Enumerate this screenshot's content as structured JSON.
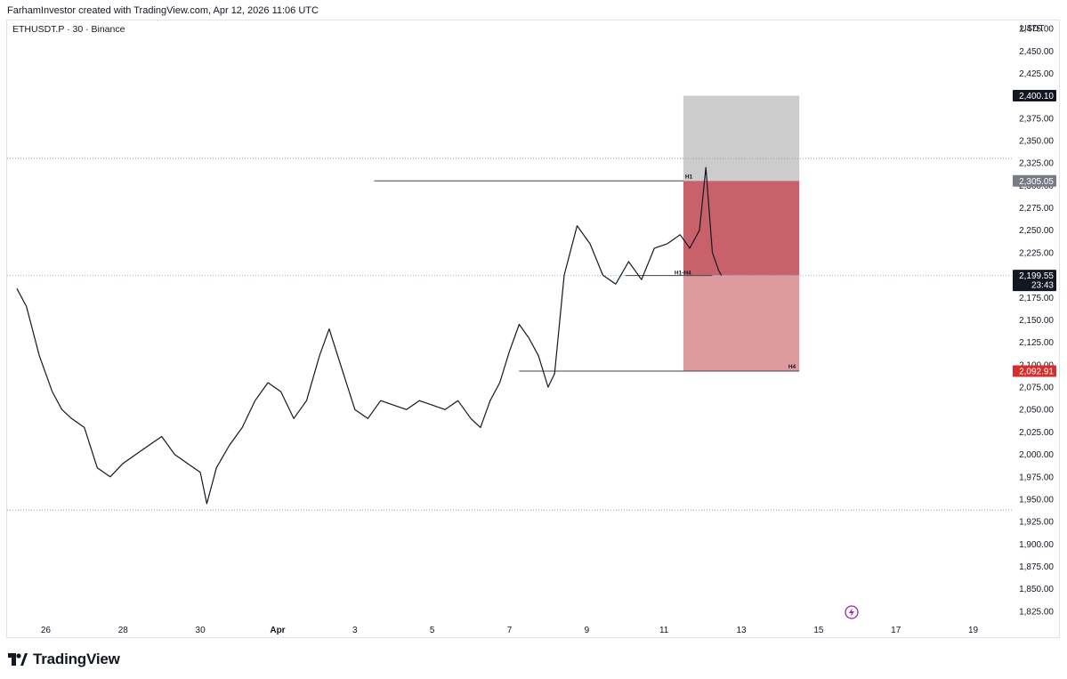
{
  "header": {
    "attribution": "FarhamInvestor created with TradingView.com, Apr 12, 2026 11:06 UTC"
  },
  "symbol_line": "ETHUSDT.P · 30 · Binance",
  "currency": "USDT",
  "footer_brand": "TradingView",
  "colors": {
    "candle": "#131722",
    "stop_zone": "#cccccc",
    "entry_zone": "#c8616a",
    "target_zone": "#dd9a9f",
    "last_price_tag": "#131722",
    "stop_tag": "#787b86",
    "red_tag": "#d32f2f",
    "dotted_line": "#9598a1",
    "blue_dotted": "#90bff9",
    "lightning": "#9c27b0"
  },
  "chart_data": {
    "type": "line",
    "title": "",
    "xlabel": "",
    "ylabel": "",
    "x_tick_labels": [
      "26",
      "28",
      "30",
      "Apr",
      "3",
      "5",
      "7",
      "9",
      "11",
      "13",
      "15",
      "17",
      "19"
    ],
    "x_tick_dates": [
      "2026-03-26",
      "2026-03-28",
      "2026-03-30",
      "2026-04-01",
      "2026-04-03",
      "2026-04-05",
      "2026-04-07",
      "2026-04-09",
      "2026-04-11",
      "2026-04-13",
      "2026-04-15",
      "2026-04-17",
      "2026-04-19"
    ],
    "xlim": [
      "2026-03-25",
      "2026-04-20"
    ],
    "ylim": [
      1812,
      2484
    ],
    "y_tick_labels": [
      "2,475.00",
      "2,450.00",
      "2,425.00",
      "2,400.00",
      "2,375.00",
      "2,350.00",
      "2,325.00",
      "2,300.00",
      "2,275.00",
      "2,250.00",
      "2,225.00",
      "2,200.00",
      "2,175.00",
      "2,150.00",
      "2,125.00",
      "2,100.00",
      "2,075.00",
      "2,050.00",
      "2,025.00",
      "2,000.00",
      "1,975.00",
      "1,950.00",
      "1,925.00",
      "1,900.00",
      "1,875.00",
      "1,850.00",
      "1,825.00"
    ],
    "y_tick_values": [
      2475,
      2450,
      2425,
      2400,
      2375,
      2350,
      2325,
      2300,
      2275,
      2250,
      2225,
      2200,
      2175,
      2150,
      2125,
      2100,
      2075,
      2050,
      2025,
      2000,
      1975,
      1950,
      1925,
      1900,
      1875,
      1850,
      1825
    ],
    "series": [
      {
        "x": [
          "2026-03-25T06:00",
          "2026-03-25T12:00",
          "2026-03-25T20:00",
          "2026-03-26T04:00",
          "2026-03-26T10:00",
          "2026-03-26T16:00",
          "2026-03-27T00:00",
          "2026-03-27T08:00",
          "2026-03-27T16:00",
          "2026-03-28T00:00",
          "2026-03-28T08:00",
          "2026-03-28T16:00",
          "2026-03-29T00:00",
          "2026-03-29T08:00",
          "2026-03-29T16:00",
          "2026-03-30T00:00",
          "2026-03-30T04:00",
          "2026-03-30T10:00",
          "2026-03-30T18:00",
          "2026-03-31T02:00",
          "2026-03-31T10:00",
          "2026-03-31T18:00",
          "2026-04-01T02:00",
          "2026-04-01T10:00",
          "2026-04-01T18:00",
          "2026-04-02T02:00",
          "2026-04-02T08:00",
          "2026-04-02T16:00",
          "2026-04-03T00:00",
          "2026-04-03T08:00",
          "2026-04-03T16:00",
          "2026-04-04T00:00",
          "2026-04-04T08:00",
          "2026-04-04T16:00",
          "2026-04-05T00:00",
          "2026-04-05T08:00",
          "2026-04-05T16:00",
          "2026-04-06T00:00",
          "2026-04-06T06:00",
          "2026-04-06T12:00",
          "2026-04-06T18:00",
          "2026-04-07T00:00",
          "2026-04-07T06:00",
          "2026-04-07T12:00",
          "2026-04-07T18:00",
          "2026-04-08T00:00",
          "2026-04-08T04:00",
          "2026-04-08T10:00",
          "2026-04-08T18:00",
          "2026-04-09T02:00",
          "2026-04-09T10:00",
          "2026-04-09T18:00",
          "2026-04-10T02:00",
          "2026-04-10T10:00",
          "2026-04-10T18:00",
          "2026-04-11T02:00",
          "2026-04-11T10:00",
          "2026-04-11T16:00",
          "2026-04-11T22:00",
          "2026-04-12T02:00",
          "2026-04-12T06:00",
          "2026-04-12T10:00"
        ],
        "y": [
          2185,
          2165,
          2110,
          2070,
          2050,
          2040,
          2030,
          1985,
          1975,
          1990,
          2000,
          2010,
          2020,
          2000,
          1990,
          1980,
          1945,
          1985,
          2010,
          2030,
          2060,
          2080,
          2070,
          2040,
          2060,
          2110,
          2140,
          2095,
          2050,
          2040,
          2060,
          2055,
          2050,
          2060,
          2055,
          2050,
          2060,
          2040,
          2030,
          2060,
          2080,
          2115,
          2145,
          2130,
          2110,
          2075,
          2090,
          2200,
          2255,
          2235,
          2200,
          2190,
          2215,
          2195,
          2230,
          2235,
          2245,
          2230,
          2250,
          2320,
          2225,
          2205
        ],
        "last": 2199.55
      }
    ],
    "levels": {
      "stop_top": 2400.1,
      "entry": 2305.05,
      "last_price": 2199.55,
      "target": 2092.91,
      "dotted_high": 2330,
      "dotted_low": 1938
    },
    "position_zones": {
      "x_start": "2026-04-11T12:00",
      "x_end": "2026-04-14T12:00"
    },
    "annotations": {
      "h1": "H1",
      "h1_h4": "H1-H4",
      "h4": "H4"
    },
    "price_tags": {
      "stop": "2,400.10",
      "entry": "2,305.05",
      "last": "2,199.55",
      "countdown": "23:43",
      "target": "2,092.91"
    },
    "grid": false,
    "legend": "none"
  }
}
